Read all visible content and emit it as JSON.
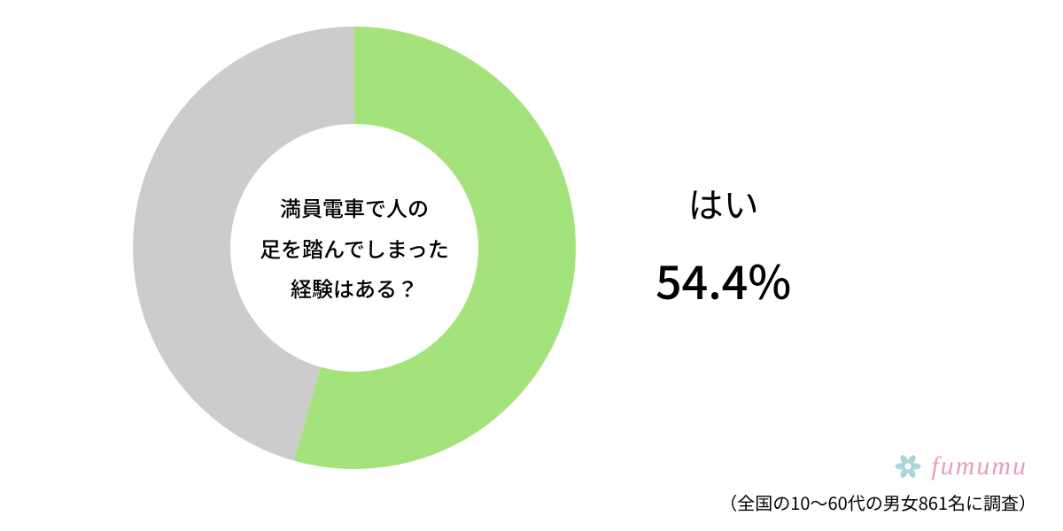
{
  "chart": {
    "type": "donut",
    "yes_percent": 54.4,
    "no_percent": 45.6,
    "yes_color": "#a4e37c",
    "no_color": "#cccccc",
    "background_color": "#ffffff",
    "outer_radius": 250,
    "inner_radius": 140,
    "start_angle_deg": -90
  },
  "center_question": {
    "line1": "満員電車で人の",
    "line2": "足を踏んでしまった",
    "line3": "経験はある？",
    "fontsize": 24,
    "color": "#000000"
  },
  "result": {
    "answer_label": "はい",
    "answer_fontsize": 40,
    "percent_text": "54.4%",
    "percent_fontsize": 52,
    "color": "#000000"
  },
  "logo": {
    "text": "fumumu",
    "text_color": "#e8a0b5",
    "icon_color": "#9bcfd4",
    "fontsize": 30
  },
  "survey_note": {
    "text": "（全国の10〜60代の男女861名に調査）",
    "fontsize": 20,
    "color": "#000000"
  }
}
